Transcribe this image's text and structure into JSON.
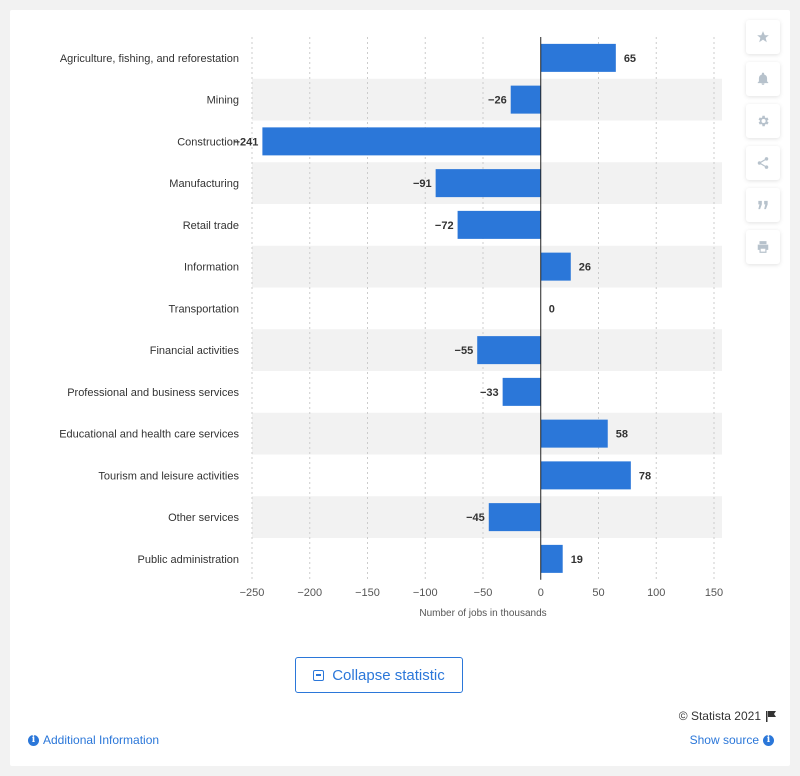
{
  "chart_data": {
    "type": "bar",
    "orientation": "horizontal",
    "categories": [
      "Agriculture, fishing, and reforestation",
      "Mining",
      "Construction",
      "Manufacturing",
      "Retail trade",
      "Information",
      "Transportation",
      "Financial activities",
      "Professional and business services",
      "Educational and health care services",
      "Tourism and leisure activities",
      "Other services",
      "Public administration"
    ],
    "values": [
      65,
      -26,
      -241,
      -91,
      -72,
      26,
      0,
      -55,
      -33,
      58,
      78,
      -45,
      19
    ],
    "value_labels": [
      "65",
      "−26",
      "−241",
      "−91",
      "−72",
      "26",
      "0",
      "−55",
      "−33",
      "58",
      "78",
      "−45",
      "19"
    ],
    "xlabel": "Number of jobs in thousands",
    "xlim": [
      -250,
      150
    ],
    "xticks": [
      -250,
      -200,
      -150,
      -100,
      -50,
      0,
      50,
      100,
      150
    ],
    "xtick_labels": [
      "−250",
      "−200",
      "−150",
      "−100",
      "−50",
      "0",
      "50",
      "100",
      "150"
    ],
    "bar_color": "#2b77d9",
    "grid": true
  },
  "buttons": {
    "collapse_label": "Collapse statistic"
  },
  "footer": {
    "copyright": "© Statista 2021",
    "additional_info": "Additional Information",
    "show_source": "Show source"
  },
  "icons": [
    "star-icon",
    "bell-icon",
    "gear-icon",
    "share-icon",
    "quote-icon",
    "print-icon",
    "flag-icon",
    "info-icon"
  ]
}
